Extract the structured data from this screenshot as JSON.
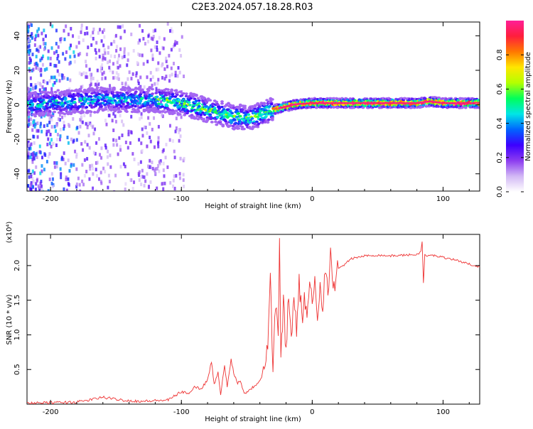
{
  "title": "C2E3.2024.057.18.28.R03",
  "chart_data": [
    {
      "type": "heatmap",
      "xlabel": "Height of straight line (km)",
      "ylabel": "Frequency (Hz)",
      "xlim": [
        -218,
        128
      ],
      "ylim": [
        -50,
        48
      ],
      "xticks": [
        -200,
        -100,
        0,
        100
      ],
      "yticks": [
        -40,
        -20,
        0,
        20,
        40
      ],
      "ridge": {
        "x": [
          -218,
          -200,
          -180,
          -160,
          -140,
          -120,
          -110,
          -100,
          -90,
          -80,
          -70,
          -60,
          -55,
          -50,
          -45,
          -40,
          -35,
          -30,
          -25,
          -20,
          -15,
          -10,
          0,
          10,
          20,
          40,
          60,
          80,
          90,
          100,
          110,
          128
        ],
        "y": [
          0,
          1,
          2,
          3,
          3,
          3,
          2,
          1,
          -1,
          -3,
          -5,
          -7,
          -7,
          -8,
          -7,
          -6,
          -4,
          -3,
          -2,
          -1,
          0,
          0.5,
          1,
          1,
          1,
          1,
          1,
          1,
          2,
          1,
          1,
          1
        ]
      },
      "colorbar": {
        "label": "Normalized spectral amplitude",
        "ticks": [
          0.0,
          0.2,
          0.4,
          0.6,
          0.8
        ],
        "range": [
          0,
          1
        ],
        "colors": [
          "#ffffff",
          "#d2b8f5",
          "#8c3cf0",
          "#3c00ff",
          "#0064ff",
          "#00e6e6",
          "#00ff5a",
          "#b4ff00",
          "#ffe600",
          "#ff7800",
          "#ff1e3c",
          "#ff1e96"
        ]
      }
    },
    {
      "type": "line",
      "xlabel": "Height of straight line (km)",
      "ylabel": "SNR (10 * v/v)",
      "scale_label": "(x10⁴)",
      "xlim": [
        -218,
        128
      ],
      "ylim": [
        0,
        2.45
      ],
      "xticks": [
        -200,
        -100,
        0,
        100
      ],
      "yticks": [
        0.5,
        1.0,
        1.5,
        2.0
      ],
      "color": "#ee3333",
      "series": [
        {
          "x": [
            -218,
            -200,
            -180,
            -170,
            -160,
            -150,
            -140,
            -130,
            -120,
            -110,
            -105,
            -100,
            -95,
            -90,
            -85,
            -80,
            -77,
            -75,
            -72,
            -70,
            -67,
            -65,
            -62,
            -60,
            -57,
            -55,
            -52,
            -50,
            -47,
            -45,
            -42,
            -40,
            -38,
            -36,
            -34,
            -32,
            -30,
            -28,
            -26,
            -25,
            -24,
            -22,
            -20,
            -18,
            -16,
            -14,
            -12,
            -10,
            -8,
            -6,
            -4,
            -2,
            0,
            2,
            4,
            6,
            8,
            10,
            12,
            14,
            16,
            18,
            20,
            25,
            30,
            35,
            40,
            50,
            60,
            70,
            80,
            83,
            84,
            85,
            86,
            88,
            90,
            95,
            100,
            105,
            110,
            115,
            120,
            125,
            128
          ],
          "y": [
            0.01,
            0.02,
            0.03,
            0.06,
            0.1,
            0.07,
            0.05,
            0.04,
            0.05,
            0.06,
            0.12,
            0.18,
            0.15,
            0.25,
            0.22,
            0.35,
            0.62,
            0.28,
            0.45,
            0.15,
            0.55,
            0.25,
            0.65,
            0.45,
            0.3,
            0.35,
            0.15,
            0.18,
            0.22,
            0.25,
            0.3,
            0.35,
            0.5,
            0.6,
            0.9,
            1.8,
            0.5,
            1.5,
            1.0,
            2.4,
            0.6,
            1.5,
            0.8,
            1.6,
            0.9,
            1.7,
            1.0,
            1.8,
            1.2,
            1.6,
            1.1,
            1.75,
            1.4,
            1.85,
            1.3,
            1.7,
            1.5,
            1.9,
            1.55,
            2.25,
            1.6,
            1.9,
            1.95,
            2.02,
            2.1,
            2.12,
            2.14,
            2.15,
            2.14,
            2.15,
            2.16,
            2.2,
            2.35,
            1.75,
            2.15,
            2.13,
            2.15,
            2.14,
            2.12,
            2.1,
            2.08,
            2.05,
            2.02,
            2.0,
            1.98
          ]
        }
      ]
    }
  ]
}
